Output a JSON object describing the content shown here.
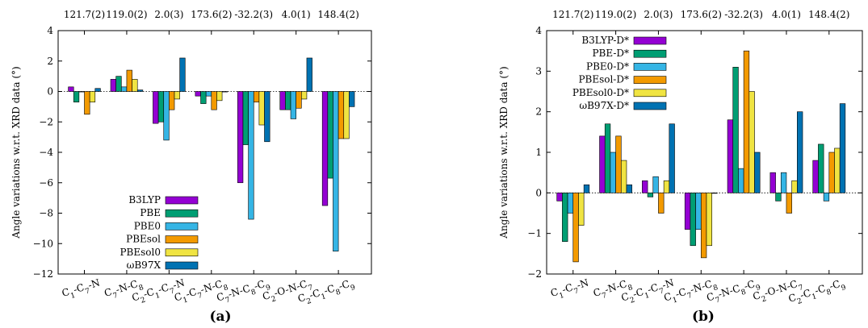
{
  "colors": [
    "#9400d3",
    "#009e73",
    "#35b5e5",
    "#f39a00",
    "#f0e442",
    "#0072b2"
  ],
  "chart_data": [
    {
      "type": "bar",
      "panel_label": "(a)",
      "ylabel": "Angle variations w.r.t. XRD data (°)",
      "ylim": [
        -12,
        4
      ],
      "yticks": [
        4,
        2,
        0,
        -2,
        -4,
        -6,
        -8,
        -10,
        -12
      ],
      "legend_position": "bottom-left",
      "top_values": [
        "121.7(2)",
        "119.0(2)",
        "2.0(3)",
        "173.6(2)",
        "-32.2(3)",
        "4.0(1)",
        "148.4(2)"
      ],
      "categories": [
        [
          "C",
          "1",
          "-C",
          "7",
          "-N"
        ],
        [
          "C",
          "7",
          "-N-C",
          "8"
        ],
        [
          "C",
          "2",
          "-C",
          "1",
          "-C",
          "7",
          "-N"
        ],
        [
          "C",
          "1",
          "-C",
          "7",
          "-N-C",
          "8"
        ],
        [
          "C",
          "7",
          "-N-C",
          "8",
          "-C",
          "9"
        ],
        [
          "C",
          "2",
          "-O-N-C",
          "7"
        ],
        [
          "C",
          "2",
          "-C",
          "1",
          "-C",
          "8",
          "-C",
          "9"
        ]
      ],
      "series": [
        {
          "name": "B3LYP",
          "values": [
            0.3,
            0.8,
            -2.1,
            -0.3,
            -6.0,
            -1.2,
            -7.5
          ]
        },
        {
          "name": "PBE",
          "values": [
            -0.7,
            1.0,
            -2.0,
            -0.8,
            -3.5,
            -1.2,
            -5.7
          ]
        },
        {
          "name": "PBE0",
          "values": [
            0.0,
            0.3,
            -3.2,
            -0.3,
            -8.4,
            -1.8,
            -10.5
          ]
        },
        {
          "name": "PBEsol",
          "values": [
            -1.5,
            1.4,
            -1.2,
            -1.2,
            -0.7,
            -1.1,
            -3.1
          ]
        },
        {
          "name": "PBEsol0",
          "values": [
            -0.7,
            0.8,
            -0.5,
            -0.6,
            -2.2,
            -0.5,
            -3.1
          ]
        },
        {
          "name": "ωB97X",
          "values": [
            0.2,
            0.1,
            2.2,
            0.0,
            -3.3,
            2.2,
            -1.0
          ]
        }
      ]
    },
    {
      "type": "bar",
      "panel_label": "(b)",
      "ylabel": "Angle variations w.r.t. XRD data (°)",
      "ylim": [
        -2,
        4
      ],
      "yticks": [
        4,
        3,
        2,
        1,
        0,
        -1,
        -2
      ],
      "legend_position": "top-left",
      "top_values": [
        "121.7(2)",
        "119.0(2)",
        "2.0(3)",
        "173.6(2)",
        "-32.2(3)",
        "4.0(1)",
        "148.4(2)"
      ],
      "categories": [
        [
          "C",
          "1",
          "-C",
          "7",
          "-N"
        ],
        [
          "C",
          "7",
          "-N-C",
          "8"
        ],
        [
          "C",
          "2",
          "-C",
          "1",
          "-C",
          "7",
          "-N"
        ],
        [
          "C",
          "1",
          "-C",
          "7",
          "-N-C",
          "8"
        ],
        [
          "C",
          "7",
          "-N-C",
          "8",
          "-C",
          "9"
        ],
        [
          "C",
          "2",
          "-O-N-C",
          "7"
        ],
        [
          "C",
          "2",
          "-C",
          "1",
          "-C",
          "8",
          "-C",
          "9"
        ]
      ],
      "series": [
        {
          "name": "B3LYP-D*",
          "values": [
            -0.2,
            1.4,
            0.3,
            -0.9,
            1.8,
            0.5,
            0.8
          ]
        },
        {
          "name": "PBE-D*",
          "values": [
            -1.2,
            1.7,
            -0.1,
            -1.3,
            3.1,
            -0.2,
            1.2
          ]
        },
        {
          "name": "PBE0-D*",
          "values": [
            -0.5,
            1.0,
            0.4,
            -0.9,
            0.6,
            0.5,
            -0.2
          ]
        },
        {
          "name": "PBEsol-D*",
          "values": [
            -1.7,
            1.4,
            -0.5,
            -1.6,
            3.5,
            -0.5,
            1.0
          ]
        },
        {
          "name": "PBEsol0-D*",
          "values": [
            -0.8,
            0.8,
            0.3,
            -1.3,
            2.5,
            0.3,
            1.1
          ]
        },
        {
          "name": "ωB97X-D*",
          "values": [
            0.2,
            0.2,
            1.7,
            0.0,
            1.0,
            2.0,
            2.2
          ]
        }
      ]
    }
  ]
}
